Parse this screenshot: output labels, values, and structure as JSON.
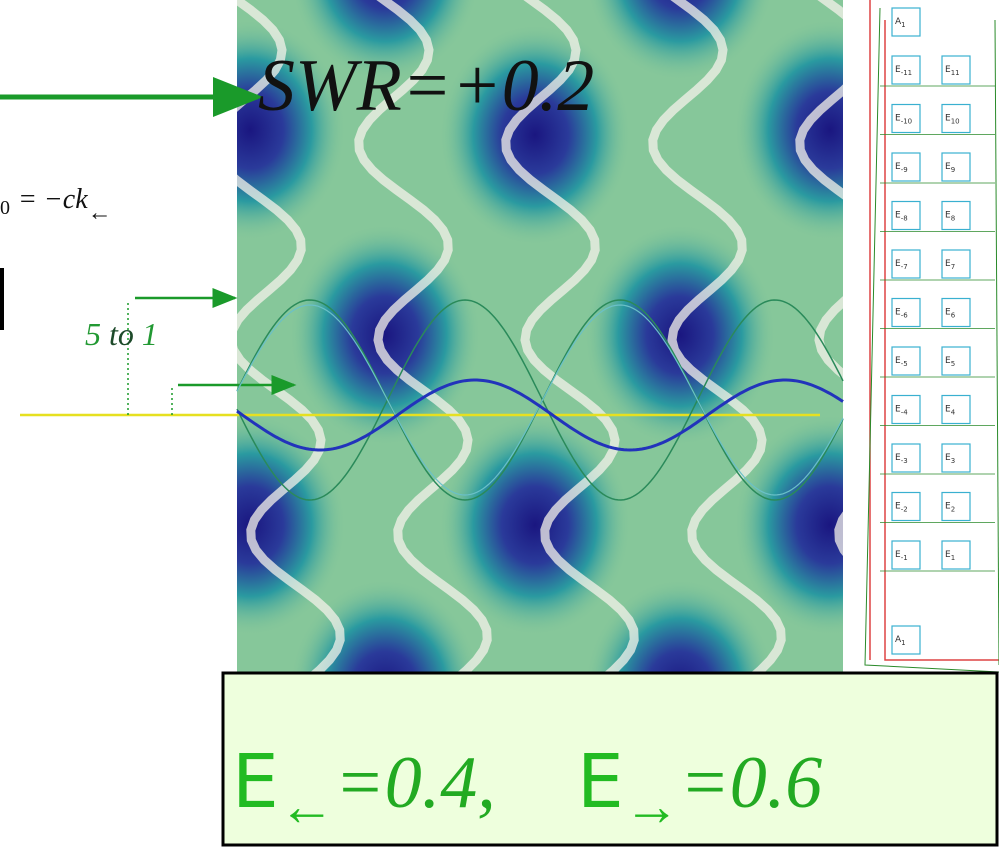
{
  "title": "SWR=+0.2",
  "equation": {
    "subscript": "0",
    "main": "= −ck",
    "arrow": "←"
  },
  "ratio_label": {
    "from": "5",
    "word": "to",
    "to": "1"
  },
  "energies": [
    {
      "symbol": "E",
      "arrow": "←",
      "value_text": "=0.4,"
    },
    {
      "symbol": "E",
      "arrow": "→",
      "value_text": "=0.6"
    }
  ],
  "panel": {
    "symbol": "E",
    "top_label": "A",
    "top_sub": "1",
    "bottom_label": "A",
    "bottom_sub": "1",
    "rows": [
      {
        "left": "-11",
        "right": "11"
      },
      {
        "left": "-10",
        "right": "10"
      },
      {
        "left": "-9",
        "right": "9"
      },
      {
        "left": "-8",
        "right": "8"
      },
      {
        "left": "-7",
        "right": "7"
      },
      {
        "left": "-6",
        "right": "6"
      },
      {
        "left": "-5",
        "right": "5"
      },
      {
        "left": "-4",
        "right": "4"
      },
      {
        "left": "-3",
        "right": "3"
      },
      {
        "left": "-2",
        "right": "2"
      },
      {
        "left": "-1",
        "right": "1"
      }
    ]
  }
}
